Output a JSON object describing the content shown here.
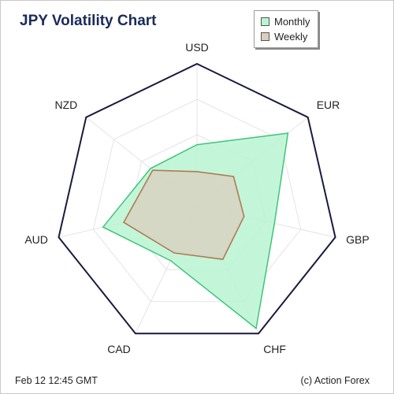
{
  "chart_data": {
    "type": "radar",
    "title": "JPY Volatility Chart",
    "categories": [
      "USD",
      "EUR",
      "GBP",
      "CHF",
      "CAD",
      "AUD",
      "NZD"
    ],
    "rlim": [
      0,
      1
    ],
    "grid": true,
    "legend_position": "top-right",
    "series": [
      {
        "name": "Monthly",
        "values": [
          0.43,
          0.82,
          0.56,
          0.96,
          0.43,
          0.68,
          0.42
        ],
        "color": "#3fc47a",
        "fill": "#b8f5d2"
      },
      {
        "name": "Weekly",
        "values": [
          0.24,
          0.33,
          0.34,
          0.42,
          0.37,
          0.53,
          0.4
        ],
        "color": "#b07b52",
        "fill": "#d9cdbd"
      }
    ]
  },
  "footer": {
    "timestamp": "Feb 12  12:45 GMT",
    "credit": "(c) Action Forex"
  }
}
